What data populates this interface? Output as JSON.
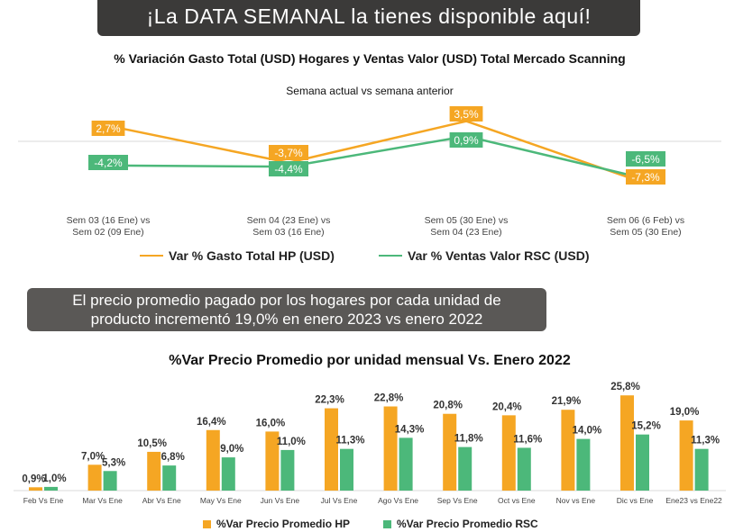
{
  "header": {
    "banner_top": "¡La DATA SEMANAL la tienes disponible aquí!",
    "banner_mid_line1": "El precio promedio pagado por los hogares por cada unidad de",
    "banner_mid_line2": "producto incrementó 19,0% en enero 2023 vs enero 2022"
  },
  "colors": {
    "orange": "#f5a623",
    "green": "#4cb87a",
    "banner": "#3b3a39"
  },
  "chart_data": [
    {
      "type": "line",
      "title": "% Variación Gasto Total (USD) Hogares y Ventas Valor (USD) Total Mercado Scanning",
      "subtitle": "Semana actual vs semana anterior",
      "categories": [
        [
          "Sem 03 (16 Ene) vs",
          "Sem 02 (09 Ene)"
        ],
        [
          "Sem 04 (23 Ene) vs",
          "Sem 03 (16 Ene)"
        ],
        [
          "Sem 05 (30 Ene) vs",
          "Sem 04 (23 Ene)"
        ],
        [
          "Sem 06 (6 Feb) vs",
          "Sem 05 (30 Ene)"
        ]
      ],
      "series": [
        {
          "name": "Var % Gasto Total HP (USD)",
          "color": "#f5a623",
          "values": [
            2.7,
            -3.7,
            3.5,
            -7.3
          ],
          "labels": [
            "2,7%",
            "-3,7%",
            "3,5%",
            "-7,3%"
          ]
        },
        {
          "name": "Var % Ventas Valor RSC (USD)",
          "color": "#4cb87a",
          "values": [
            -4.2,
            -4.4,
            0.9,
            -6.5
          ],
          "labels": [
            "-4,2%",
            "-4,4%",
            "0,9%",
            "-6,5%"
          ]
        }
      ],
      "legend": "bottom"
    },
    {
      "type": "bar",
      "title": "%Var Precio Promedio por unidad mensual Vs. Enero 2022",
      "categories": [
        "Feb Vs Ene",
        "Mar Vs Ene",
        "Abr Vs Ene",
        "May Vs Ene",
        "Jun Vs Ene",
        "Jul Vs Ene",
        "Ago Vs Ene",
        "Sep Vs Ene",
        "Oct vs Ene",
        "Nov vs Ene",
        "Dic vs Ene",
        "Ene23 vs Ene22"
      ],
      "series": [
        {
          "name": "%Var Precio Promedio HP",
          "color": "#f5a623",
          "values": [
            0.9,
            7.0,
            10.5,
            16.4,
            16.0,
            22.3,
            22.8,
            20.8,
            20.4,
            21.9,
            25.8,
            19.0
          ],
          "labels": [
            "0,9%",
            "7,0%",
            "10,5%",
            "16,4%",
            "16,0%",
            "22,3%",
            "22,8%",
            "20,8%",
            "20,4%",
            "21,9%",
            "25,8%",
            "19,0%"
          ]
        },
        {
          "name": "%Var Precio Promedio RSC",
          "color": "#4cb87a",
          "values": [
            1.0,
            5.3,
            6.8,
            9.0,
            11.0,
            11.3,
            14.3,
            11.8,
            11.6,
            14.0,
            15.2,
            11.3
          ],
          "labels": [
            "1,0%",
            "5,3%",
            "6,8%",
            "9,0%",
            "11,0%",
            "11,3%",
            "14,3%",
            "11,8%",
            "11,6%",
            "14,0%",
            "15,2%",
            "11,3%"
          ]
        }
      ],
      "legend": "bottom"
    }
  ]
}
